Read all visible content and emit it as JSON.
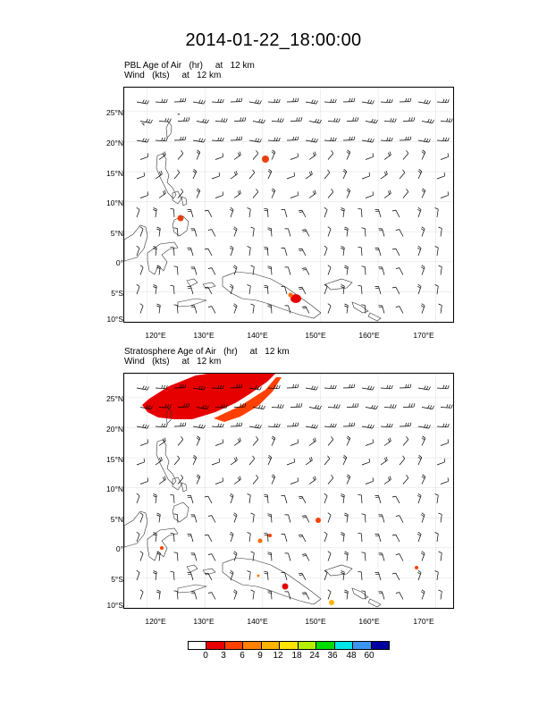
{
  "title": "2014-01-22_18:00:00",
  "panels": [
    {
      "label_line1": "PBL Age of Air   (hr)     at   12 km",
      "label_line2": "Wind   (kts)     at   12 km"
    },
    {
      "label_line1": "Stratosphere Age of Air   (hr)     at   12 km",
      "label_line2": "Wind   (kts)     at   12 km"
    }
  ],
  "map": {
    "lat_labels": [
      "25°N",
      "20°N",
      "15°N",
      "10°N",
      "5°N",
      "0°",
      "5°S",
      "10°S"
    ],
    "lon_labels": [
      "120°E",
      "130°E",
      "140°E",
      "150°E",
      "160°E",
      "170°E"
    ],
    "lat_values": [
      25,
      20,
      15,
      10,
      5,
      0,
      -5,
      -10
    ],
    "lon_values": [
      120,
      130,
      140,
      150,
      160,
      170
    ],
    "lat_range": [
      -10,
      29
    ],
    "lon_range": [
      116,
      173
    ]
  },
  "colorbar": {
    "labels": [
      "0",
      "3",
      "6",
      "9",
      "12",
      "18",
      "24",
      "36",
      "48",
      "60"
    ],
    "colors": [
      "#ffffff",
      "#e60000",
      "#ff4000",
      "#ff8000",
      "#ffb400",
      "#ffe600",
      "#b4f000",
      "#00dc00",
      "#00e6e6",
      "#3c96f0",
      "#0000a0"
    ]
  }
}
